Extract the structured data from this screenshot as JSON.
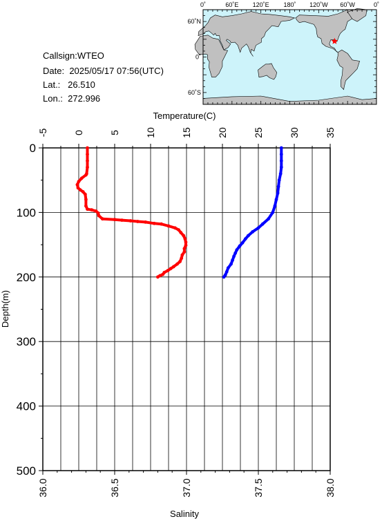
{
  "station": {
    "callsign_label": "Callsign:",
    "callsign": "WTEO",
    "date_label": "Date:",
    "date": "2025/05/17 07:56(UTC)",
    "lat_label": "Lat.:",
    "lat": "26.510",
    "lon_label": "Lon.:",
    "lon": "272.996"
  },
  "map": {
    "lon_ticks": [
      "0˚",
      "60˚E",
      "120˚E",
      "180˚",
      "120˚W",
      "60˚W",
      "0˚"
    ],
    "lat_ticks": [
      "60˚N",
      "0˚",
      "60˚S"
    ],
    "ocean_color": "#cdf3fa",
    "land_color": "#c0c0c0",
    "marker": {
      "lat": 26.51,
      "lon": 272.996,
      "color": "#ff0000"
    }
  },
  "chart_data": {
    "type": "line",
    "title": "",
    "top_axis_label": "Temperature(C)",
    "bottom_axis_label": "Salinity",
    "ylabel": "Depth(m)",
    "temperature_range": [
      -5,
      35
    ],
    "temperature_ticks": [
      -5,
      0,
      5,
      10,
      15,
      20,
      25,
      30,
      35
    ],
    "salinity_range": [
      36.0,
      38.0
    ],
    "salinity_ticks": [
      "36.0",
      "36.5",
      "37.0",
      "37.5",
      "38.0"
    ],
    "depth_range": [
      0,
      500
    ],
    "depth_ticks": [
      0,
      100,
      200,
      300,
      400,
      500
    ],
    "grid": true,
    "series": [
      {
        "name": "Temperature",
        "axis": "temperature",
        "color": "#ff0000",
        "points": [
          [
            1.2,
            0
          ],
          [
            1.2,
            10
          ],
          [
            1.2,
            20
          ],
          [
            1.2,
            30
          ],
          [
            1.1,
            40
          ],
          [
            1.0,
            42
          ],
          [
            0.4,
            47
          ],
          [
            0.0,
            52
          ],
          [
            -0.2,
            57
          ],
          [
            -0.1,
            62
          ],
          [
            0.2,
            65
          ],
          [
            0.6,
            68
          ],
          [
            0.9,
            72
          ],
          [
            1.0,
            80
          ],
          [
            1.0,
            90
          ],
          [
            1.2,
            95
          ],
          [
            1.8,
            96
          ],
          [
            2.4,
            98
          ],
          [
            2.7,
            101
          ],
          [
            2.8,
            105
          ],
          [
            3.3,
            110
          ],
          [
            5.0,
            111
          ],
          [
            6.0,
            112
          ],
          [
            7.2,
            113
          ],
          [
            8.2,
            114
          ],
          [
            9.3,
            115
          ],
          [
            10.5,
            117
          ],
          [
            11.5,
            118
          ],
          [
            12.5,
            121
          ],
          [
            13.4,
            124
          ],
          [
            13.9,
            127
          ],
          [
            14.2,
            131
          ],
          [
            14.6,
            136
          ],
          [
            14.8,
            141
          ],
          [
            14.9,
            146
          ],
          [
            14.9,
            151
          ],
          [
            14.7,
            156
          ],
          [
            14.7,
            161
          ],
          [
            14.4,
            166
          ],
          [
            14.3,
            171
          ],
          [
            14.1,
            176
          ],
          [
            13.7,
            180
          ],
          [
            13.2,
            184
          ],
          [
            12.8,
            187
          ],
          [
            12.4,
            190
          ],
          [
            11.9,
            193
          ],
          [
            11.7,
            196
          ],
          [
            11.3,
            198
          ],
          [
            11.0,
            200
          ]
        ]
      },
      {
        "name": "Salinity",
        "axis": "salinity",
        "color": "#0000ff",
        "points": [
          [
            37.66,
            0
          ],
          [
            37.66,
            10
          ],
          [
            37.66,
            20
          ],
          [
            37.66,
            30
          ],
          [
            37.655,
            40
          ],
          [
            37.645,
            50
          ],
          [
            37.64,
            60
          ],
          [
            37.635,
            70
          ],
          [
            37.625,
            80
          ],
          [
            37.615,
            90
          ],
          [
            37.6,
            100
          ],
          [
            37.57,
            110
          ],
          [
            37.53,
            118
          ],
          [
            37.5,
            124
          ],
          [
            37.46,
            130
          ],
          [
            37.43,
            136
          ],
          [
            37.41,
            141
          ],
          [
            37.39,
            147
          ],
          [
            37.37,
            152
          ],
          [
            37.35,
            158
          ],
          [
            37.34,
            163
          ],
          [
            37.33,
            168
          ],
          [
            37.32,
            174
          ],
          [
            37.31,
            180
          ],
          [
            37.29,
            186
          ],
          [
            37.28,
            192
          ],
          [
            37.27,
            197
          ],
          [
            37.26,
            200
          ]
        ]
      }
    ]
  }
}
